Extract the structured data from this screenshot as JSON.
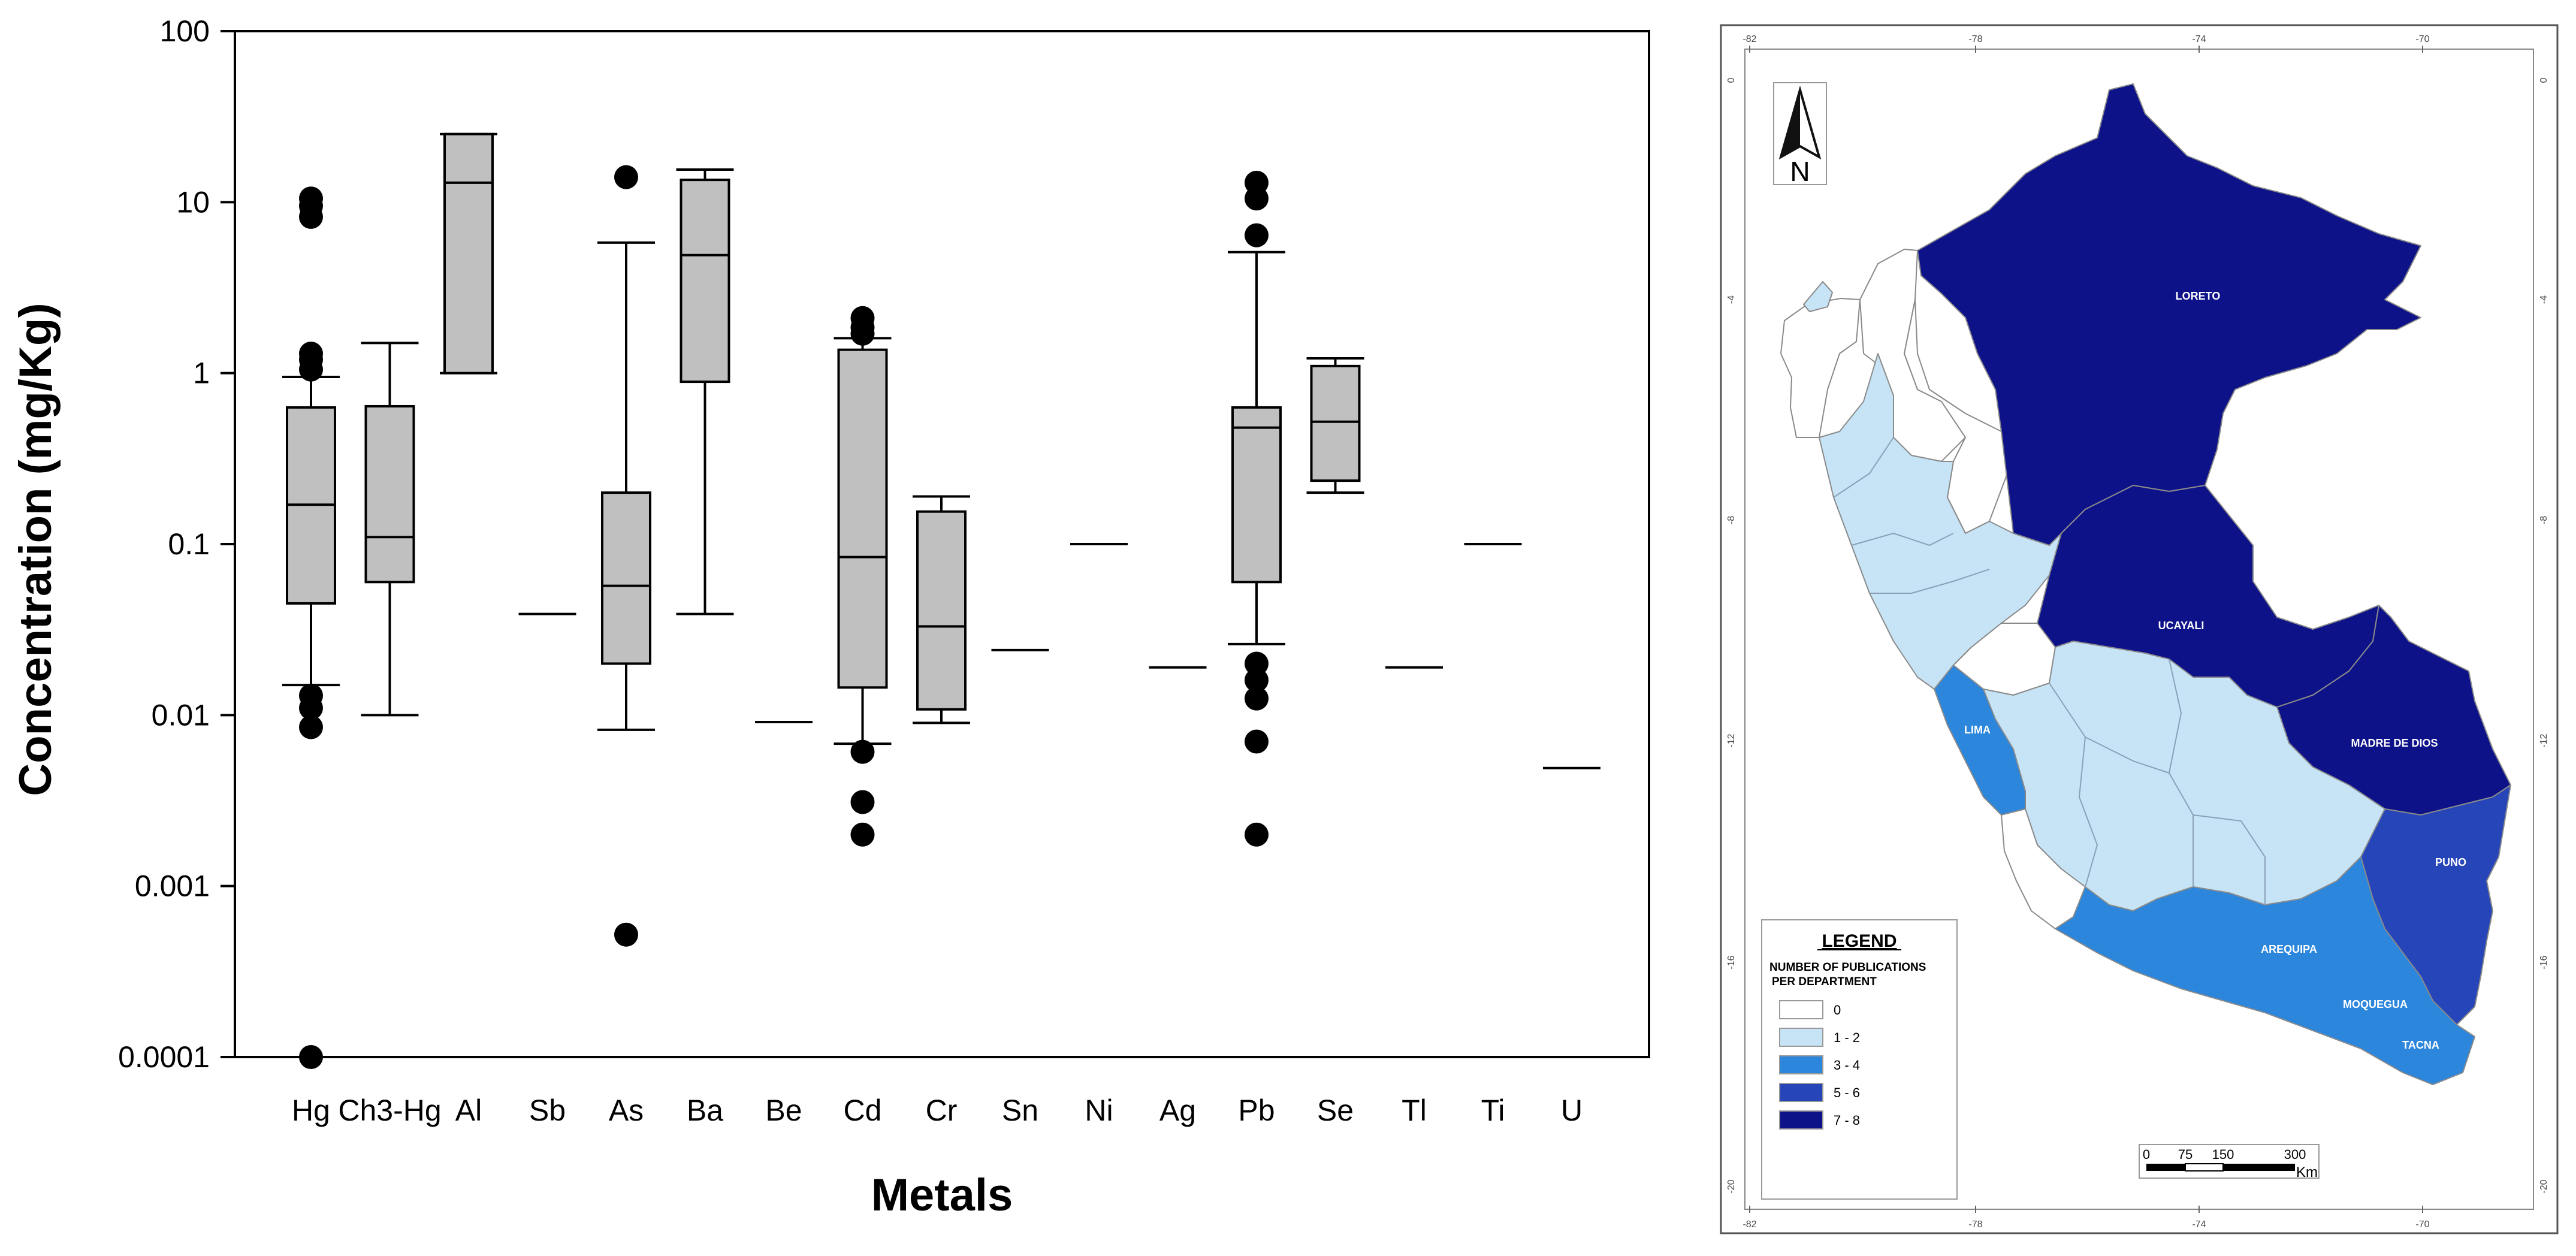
{
  "chart_data": {
    "type": "boxplot",
    "title": "",
    "xlabel": "Metals",
    "ylabel": "Concentration (mg/Kg)",
    "yscale": "log",
    "ylim": [
      0.0001,
      100
    ],
    "y_ticks": [
      {
        "value": 100,
        "label": "100"
      },
      {
        "value": 10,
        "label": "10"
      },
      {
        "value": 1,
        "label": "1"
      },
      {
        "value": 0.1,
        "label": "0.1"
      },
      {
        "value": 0.01,
        "label": "0.01"
      },
      {
        "value": 0.001,
        "label": "0.001"
      },
      {
        "value": 0.0001,
        "label": "0.0001"
      }
    ],
    "categories": [
      "Hg",
      "Ch3-Hg",
      "Al",
      "Sb",
      "As",
      "Ba",
      "Be",
      "Cd",
      "Cr",
      "Sn",
      "Ni",
      "Ag",
      "Pb",
      "Se",
      "Tl",
      "Ti",
      "U"
    ],
    "boxes": [
      {
        "name": "Hg",
        "whisker_low": 0.015,
        "q1": 0.045,
        "median": 0.17,
        "q3": 0.63,
        "whisker_high": 0.95,
        "outliers": [
          10.5,
          9.5,
          8.2,
          1.3,
          1.2,
          1.05,
          0.013,
          0.011,
          0.0085,
          0.0001
        ]
      },
      {
        "name": "Ch3-Hg",
        "whisker_low": 0.01,
        "q1": 0.06,
        "median": 0.11,
        "q3": 0.64,
        "whisker_high": 1.5,
        "outliers": []
      },
      {
        "name": "Al",
        "whisker_low": 1.0,
        "q1": 1.0,
        "median": 13,
        "q3": 25,
        "whisker_high": 25,
        "outliers": []
      },
      {
        "name": "Sb",
        "single_value": 0.039
      },
      {
        "name": "As",
        "whisker_low": 0.0082,
        "q1": 0.02,
        "median": 0.057,
        "q3": 0.2,
        "whisker_high": 5.8,
        "outliers": [
          14,
          0.00052
        ]
      },
      {
        "name": "Ba",
        "whisker_low": 0.039,
        "q1": 0.89,
        "median": 4.9,
        "q3": 13.5,
        "whisker_high": 15.5,
        "outliers": []
      },
      {
        "name": "Be",
        "single_value": 0.0091
      },
      {
        "name": "Cd",
        "whisker_low": 0.0068,
        "q1": 0.0145,
        "median": 0.084,
        "q3": 1.37,
        "whisker_high": 1.6,
        "outliers": [
          2.1,
          1.85,
          1.7,
          0.0061,
          0.0031,
          0.002
        ]
      },
      {
        "name": "Cr",
        "whisker_low": 0.009,
        "q1": 0.0108,
        "median": 0.033,
        "q3": 0.155,
        "whisker_high": 0.19,
        "outliers": []
      },
      {
        "name": "Sn",
        "single_value": 0.024
      },
      {
        "name": "Ni",
        "single_value": 0.1
      },
      {
        "name": "Ag",
        "single_value": 0.019
      },
      {
        "name": "Pb",
        "whisker_low": 0.026,
        "q1": 0.06,
        "median": 0.48,
        "q3": 0.63,
        "whisker_high": 5.1,
        "outliers": [
          13,
          10.5,
          6.4,
          0.02,
          0.016,
          0.0125,
          0.007,
          0.002
        ]
      },
      {
        "name": "Se",
        "whisker_low": 0.2,
        "q1": 0.235,
        "median": 0.52,
        "q3": 1.1,
        "whisker_high": 1.22,
        "outliers": []
      },
      {
        "name": "Tl",
        "single_value": 0.019
      },
      {
        "name": "Ti",
        "single_value": 0.1
      },
      {
        "name": "U",
        "single_value": 0.0049
      }
    ]
  },
  "map": {
    "lon_labels": [
      "-82",
      "-78",
      "-74",
      "-70"
    ],
    "lat_labels": [
      "0",
      "-4",
      "-8",
      "-12",
      "-16",
      "-20"
    ],
    "north_label": "N",
    "legend": {
      "title": "LEGEND",
      "subtitle_line1": "NUMBER OF PUBLICATIONS",
      "subtitle_line2": "PER DEPARTMENT",
      "items": [
        {
          "label": "0",
          "color": "#ffffff"
        },
        {
          "label": "1 - 2",
          "color": "#c6e4f6"
        },
        {
          "label": "3 - 4",
          "color": "#2b86dc"
        },
        {
          "label": "5 - 6",
          "color": "#2645b8"
        },
        {
          "label": "7 - 8",
          "color": "#0d1289"
        }
      ]
    },
    "scale_bar": {
      "ticks": [
        "0",
        "75",
        "150",
        "300"
      ],
      "unit": "Km"
    },
    "regions": [
      {
        "name": "LORETO",
        "class": "7 - 8"
      },
      {
        "name": "UCAYALI",
        "class": "7 - 8"
      },
      {
        "name": "MADRE DE DIOS",
        "class": "7 - 8"
      },
      {
        "name": "PUNO",
        "class": "5 - 6"
      },
      {
        "name": "LIMA",
        "class": "3 - 4"
      },
      {
        "name": "AREQUIPA",
        "class": "3 - 4"
      },
      {
        "name": "MOQUEGUA",
        "class": "3 - 4"
      },
      {
        "name": "TACNA",
        "class": "3 - 4"
      }
    ]
  }
}
